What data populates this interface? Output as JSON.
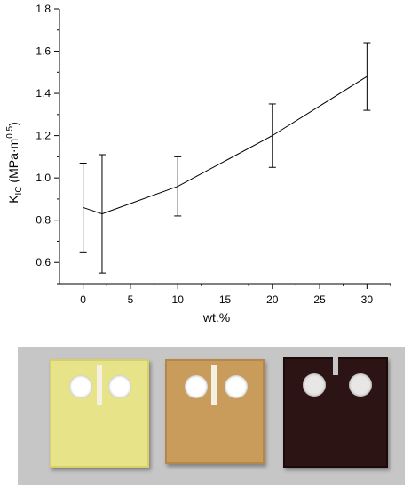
{
  "chart_data": {
    "type": "line",
    "x": [
      0,
      2,
      10,
      20,
      30
    ],
    "series": [
      {
        "values": [
          0.86,
          0.83,
          0.96,
          1.2,
          1.48
        ],
        "error_lower": [
          0.65,
          0.55,
          0.82,
          1.05,
          1.32
        ],
        "error_upper": [
          1.07,
          1.11,
          1.1,
          1.35,
          1.64
        ]
      }
    ],
    "xlabel": "wt.%",
    "ylabel": {
      "main": "K",
      "sub": "IC",
      "unit": " (MPa·m",
      "exp": "0.5",
      "close": ")"
    },
    "xlim": [
      -2.5,
      32.5
    ],
    "ylim": [
      0.5,
      1.8
    ],
    "xticks": [
      "0",
      "5",
      "10",
      "15",
      "20",
      "25",
      "30"
    ],
    "yticks": [
      "0.6",
      "0.8",
      "1.0",
      "1.2",
      "1.4",
      "1.6",
      "1.8"
    ],
    "grid": false,
    "color": "#000000"
  },
  "photo": {
    "background": "#c6c6c6",
    "samples": [
      {
        "color": "#e7e389",
        "edge": "#d7cf6a"
      },
      {
        "color": "#c99c5c",
        "edge": "#b5884a"
      },
      {
        "color": "#2c1414",
        "edge": "#1a0a0a"
      }
    ]
  }
}
